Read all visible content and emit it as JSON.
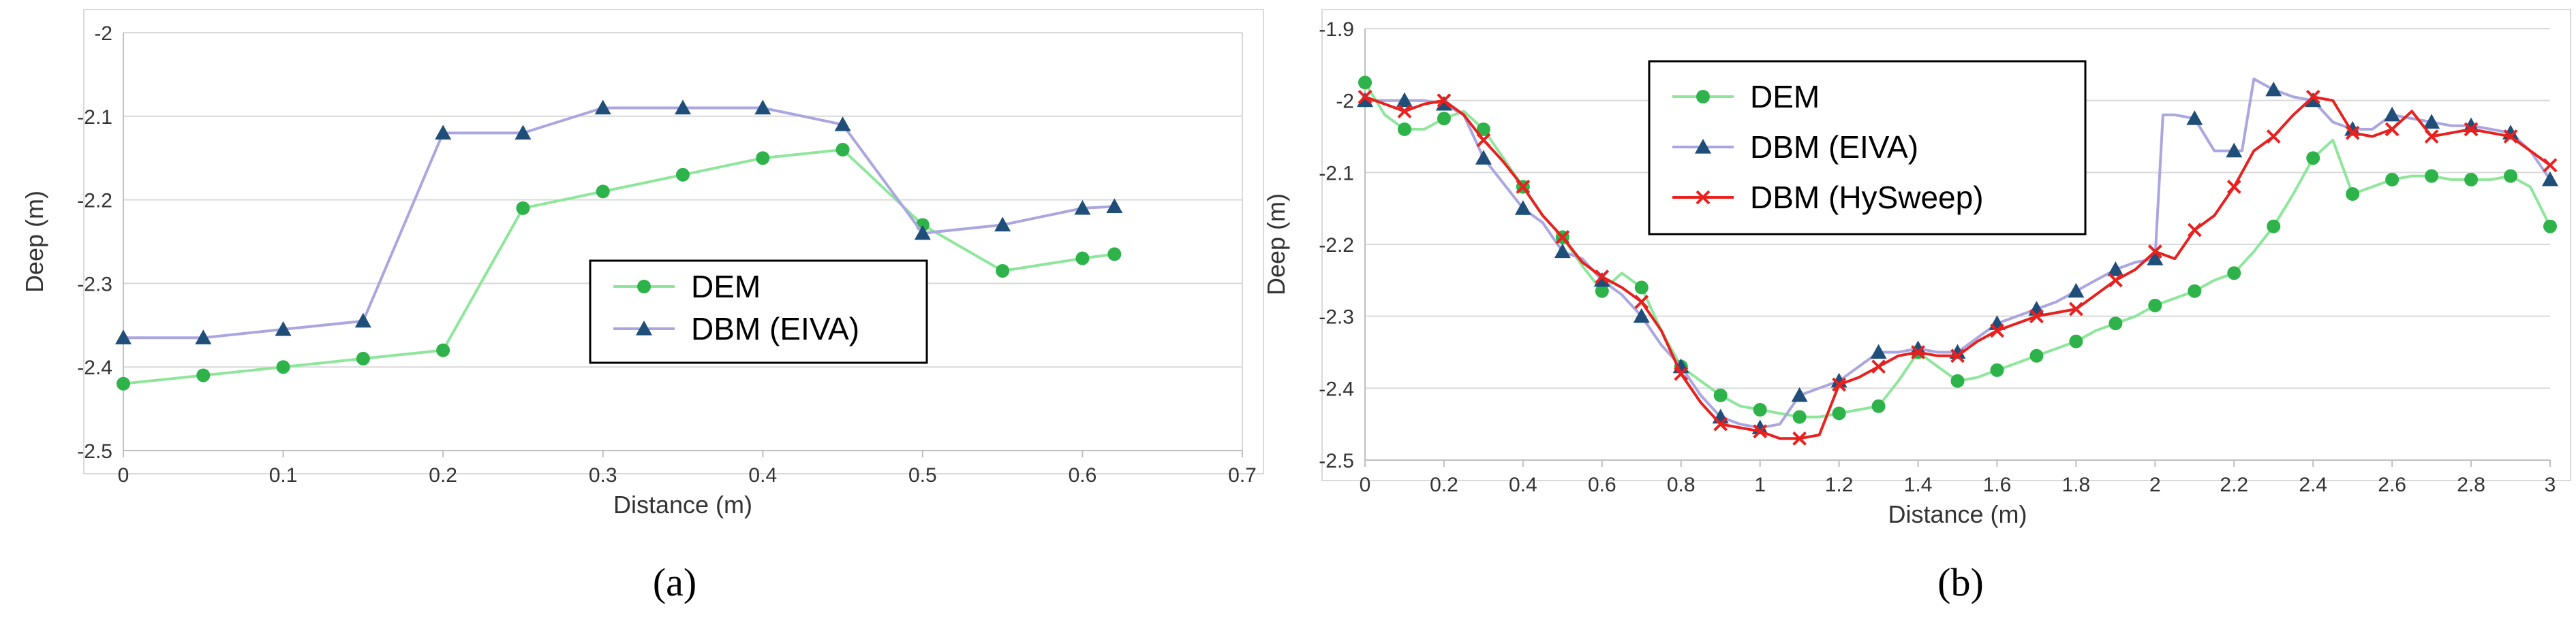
{
  "chart_data": [
    {
      "type": "line",
      "panel_label": "(a)",
      "xlabel": "Distance (m)",
      "ylabel": "Deep (m)",
      "xlim": [
        0,
        0.7
      ],
      "ylim": [
        -2.5,
        -2.0
      ],
      "x_ticks": [
        0,
        0.1,
        0.2,
        0.3,
        0.4,
        0.5,
        0.6,
        0.7
      ],
      "x_tick_labels": [
        "0",
        "0.1",
        "0.2",
        "0.3",
        "0.4",
        "0.5",
        "0.6",
        "0.7"
      ],
      "y_ticks": [
        -2,
        -2.1,
        -2.2,
        -2.3,
        -2.4,
        -2.5
      ],
      "y_tick_labels": [
        "-2",
        "-2.1",
        "-2.2",
        "-2.3",
        "-2.4",
        "-2.5"
      ],
      "grid": true,
      "legend_position": "center-right",
      "series": [
        {
          "name": "DEM",
          "color": "#2db34a",
          "line_color": "#8ee69b",
          "marker": "circle",
          "x": [
            0,
            0.05,
            0.1,
            0.15,
            0.2,
            0.25,
            0.3,
            0.35,
            0.4,
            0.45,
            0.5,
            0.55,
            0.6,
            0.62
          ],
          "y": [
            -2.42,
            -2.41,
            -2.4,
            -2.39,
            -2.38,
            -2.21,
            -2.19,
            -2.17,
            -2.15,
            -2.14,
            -2.23,
            -2.285,
            -2.27,
            -2.265
          ]
        },
        {
          "name": "DBM (EIVA)",
          "color": "#1f4e79",
          "line_color": "#aaa6e0",
          "marker": "triangle",
          "x": [
            0,
            0.05,
            0.1,
            0.15,
            0.2,
            0.25,
            0.3,
            0.35,
            0.4,
            0.45,
            0.5,
            0.55,
            0.6,
            0.62
          ],
          "y": [
            -2.365,
            -2.365,
            -2.355,
            -2.345,
            -2.12,
            -2.12,
            -2.09,
            -2.09,
            -2.09,
            -2.11,
            -2.24,
            -2.23,
            -2.21,
            -2.208
          ]
        }
      ]
    },
    {
      "type": "line",
      "panel_label": "(b)",
      "xlabel": "Distance (m)",
      "ylabel": "Deep (m)",
      "xlim": [
        0,
        3
      ],
      "ylim": [
        -2.5,
        -1.9
      ],
      "x_ticks": [
        0,
        0.2,
        0.4,
        0.6,
        0.8,
        1,
        1.2,
        1.4,
        1.6,
        1.8,
        2,
        2.2,
        2.4,
        2.6,
        2.8,
        3
      ],
      "x_tick_labels": [
        "0",
        "0.2",
        "0.4",
        "0.6",
        "0.8",
        "1",
        "1.2",
        "1.4",
        "1.6",
        "1.8",
        "2",
        "2.2",
        "2.4",
        "2.6",
        "2.8",
        "3"
      ],
      "y_ticks": [
        -1.9,
        -2,
        -2.1,
        -2.2,
        -2.3,
        -2.4,
        -2.5
      ],
      "y_tick_labels": [
        "-1.9",
        "-2",
        "-2.1",
        "-2.2",
        "-2.3",
        "-2.4",
        "-2.5"
      ],
      "grid": true,
      "legend_position": "top-left",
      "series": [
        {
          "name": "DEM",
          "color": "#2db34a",
          "line_color": "#8ee69b",
          "marker": "circle",
          "x": [
            0,
            0.05,
            0.1,
            0.15,
            0.2,
            0.25,
            0.3,
            0.35,
            0.4,
            0.45,
            0.5,
            0.55,
            0.6,
            0.65,
            0.7,
            0.75,
            0.8,
            0.85,
            0.9,
            0.95,
            1.0,
            1.05,
            1.1,
            1.15,
            1.2,
            1.25,
            1.3,
            1.35,
            1.4,
            1.45,
            1.5,
            1.55,
            1.6,
            1.65,
            1.7,
            1.75,
            1.8,
            1.85,
            1.9,
            1.95,
            2.0,
            2.05,
            2.1,
            2.15,
            2.2,
            2.25,
            2.3,
            2.35,
            2.4,
            2.45,
            2.5,
            2.55,
            2.6,
            2.65,
            2.7,
            2.75,
            2.8,
            2.85,
            2.9,
            2.95,
            3.0
          ],
          "y": [
            -1.975,
            -2.02,
            -2.04,
            -2.04,
            -2.025,
            -2.015,
            -2.04,
            -2.08,
            -2.12,
            -2.16,
            -2.19,
            -2.23,
            -2.265,
            -2.24,
            -2.26,
            -2.32,
            -2.37,
            -2.39,
            -2.41,
            -2.425,
            -2.43,
            -2.435,
            -2.44,
            -2.44,
            -2.435,
            -2.43,
            -2.425,
            -2.39,
            -2.35,
            -2.37,
            -2.39,
            -2.385,
            -2.375,
            -2.365,
            -2.355,
            -2.345,
            -2.335,
            -2.32,
            -2.31,
            -2.3,
            -2.285,
            -2.275,
            -2.265,
            -2.25,
            -2.24,
            -2.21,
            -2.175,
            -2.13,
            -2.08,
            -2.055,
            -2.13,
            -2.12,
            -2.11,
            -2.105,
            -2.105,
            -2.11,
            -2.11,
            -2.11,
            -2.105,
            -2.12,
            -2.175
          ],
          "markers_at": [
            0,
            0.1,
            0.2,
            0.3,
            0.4,
            0.5,
            0.6,
            0.7,
            0.8,
            0.9,
            1.0,
            1.1,
            1.2,
            1.3,
            1.4,
            1.5,
            1.6,
            1.7,
            1.8,
            1.9,
            2.0,
            2.1,
            2.2,
            2.3,
            2.4,
            2.5,
            2.6,
            2.7,
            2.8,
            2.9,
            3.0
          ]
        },
        {
          "name": "DBM (EIVA)",
          "color": "#1f4e79",
          "line_color": "#aaa6e0",
          "marker": "triangle",
          "x": [
            0,
            0.05,
            0.1,
            0.15,
            0.2,
            0.25,
            0.3,
            0.35,
            0.4,
            0.45,
            0.5,
            0.55,
            0.6,
            0.65,
            0.7,
            0.75,
            0.8,
            0.85,
            0.9,
            0.95,
            1.0,
            1.05,
            1.1,
            1.15,
            1.2,
            1.25,
            1.3,
            1.35,
            1.4,
            1.45,
            1.5,
            1.55,
            1.6,
            1.65,
            1.7,
            1.75,
            1.8,
            1.85,
            1.9,
            1.95,
            2.0,
            2.02,
            2.05,
            2.1,
            2.15,
            2.2,
            2.22,
            2.25,
            2.3,
            2.35,
            2.4,
            2.45,
            2.5,
            2.55,
            2.6,
            2.65,
            2.7,
            2.75,
            2.8,
            2.85,
            2.9,
            2.95,
            3.0
          ],
          "y": [
            -2.0,
            -2.0,
            -2.0,
            -2.0,
            -2.005,
            -2.02,
            -2.08,
            -2.115,
            -2.15,
            -2.17,
            -2.21,
            -2.22,
            -2.25,
            -2.27,
            -2.3,
            -2.34,
            -2.37,
            -2.41,
            -2.44,
            -2.45,
            -2.455,
            -2.45,
            -2.41,
            -2.4,
            -2.39,
            -2.37,
            -2.35,
            -2.35,
            -2.345,
            -2.35,
            -2.35,
            -2.33,
            -2.31,
            -2.3,
            -2.29,
            -2.28,
            -2.265,
            -2.25,
            -2.235,
            -2.225,
            -2.22,
            -2.02,
            -2.02,
            -2.025,
            -2.07,
            -2.07,
            -2.07,
            -1.97,
            -1.985,
            -1.995,
            -2.0,
            -2.03,
            -2.04,
            -2.04,
            -2.02,
            -2.025,
            -2.03,
            -2.035,
            -2.035,
            -2.04,
            -2.045,
            -2.07,
            -2.11
          ],
          "markers_at": [
            0,
            0.1,
            0.2,
            0.3,
            0.4,
            0.5,
            0.6,
            0.7,
            0.8,
            0.9,
            1.0,
            1.1,
            1.2,
            1.3,
            1.4,
            1.5,
            1.6,
            1.7,
            1.8,
            1.9,
            2.0,
            2.1,
            2.2,
            2.3,
            2.4,
            2.5,
            2.6,
            2.7,
            2.8,
            2.9,
            3.0
          ]
        },
        {
          "name": "DBM (HySweep)",
          "color": "#e8201e",
          "line_color": "#e8201e",
          "marker": "cross",
          "x": [
            0,
            0.05,
            0.1,
            0.15,
            0.2,
            0.25,
            0.3,
            0.35,
            0.4,
            0.45,
            0.5,
            0.55,
            0.6,
            0.65,
            0.7,
            0.75,
            0.8,
            0.85,
            0.9,
            0.95,
            1.0,
            1.05,
            1.1,
            1.15,
            1.2,
            1.25,
            1.3,
            1.35,
            1.4,
            1.45,
            1.5,
            1.55,
            1.6,
            1.65,
            1.7,
            1.75,
            1.8,
            1.85,
            1.9,
            1.95,
            2.0,
            2.05,
            2.1,
            2.15,
            2.2,
            2.25,
            2.3,
            2.35,
            2.4,
            2.45,
            2.5,
            2.55,
            2.6,
            2.65,
            2.7,
            2.75,
            2.8,
            2.85,
            2.9,
            2.95,
            3.0
          ],
          "y": [
            -1.995,
            -2.005,
            -2.015,
            -2.005,
            -2.0,
            -2.02,
            -2.055,
            -2.085,
            -2.12,
            -2.16,
            -2.19,
            -2.225,
            -2.245,
            -2.26,
            -2.28,
            -2.32,
            -2.38,
            -2.42,
            -2.45,
            -2.455,
            -2.46,
            -2.47,
            -2.47,
            -2.465,
            -2.395,
            -2.385,
            -2.37,
            -2.355,
            -2.35,
            -2.355,
            -2.355,
            -2.335,
            -2.32,
            -2.31,
            -2.3,
            -2.295,
            -2.29,
            -2.27,
            -2.25,
            -2.235,
            -2.21,
            -2.22,
            -2.18,
            -2.16,
            -2.12,
            -2.07,
            -2.05,
            -2.02,
            -1.995,
            -2.0,
            -2.045,
            -2.05,
            -2.04,
            -2.015,
            -2.05,
            -2.045,
            -2.04,
            -2.045,
            -2.05,
            -2.07,
            -2.09
          ],
          "markers_at": [
            0,
            0.1,
            0.2,
            0.3,
            0.4,
            0.5,
            0.6,
            0.7,
            0.8,
            0.9,
            1.0,
            1.1,
            1.2,
            1.3,
            1.4,
            1.5,
            1.6,
            1.7,
            1.8,
            1.9,
            2.0,
            2.1,
            2.2,
            2.3,
            2.4,
            2.5,
            2.6,
            2.7,
            2.8,
            2.9,
            3.0
          ]
        }
      ]
    }
  ]
}
